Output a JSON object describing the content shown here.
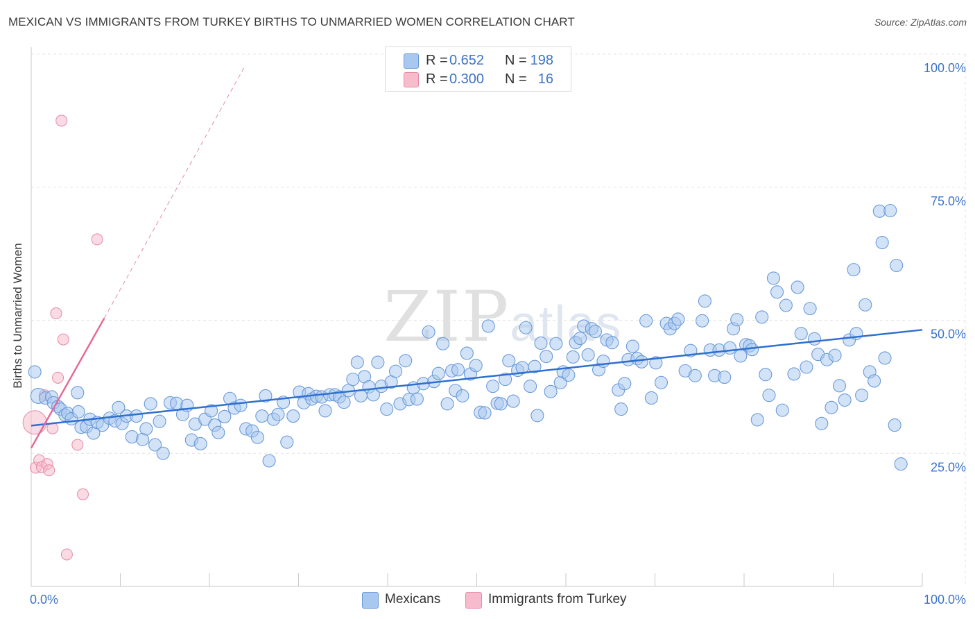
{
  "title": "MEXICAN VS IMMIGRANTS FROM TURKEY BIRTHS TO UNMARRIED WOMEN CORRELATION CHART",
  "source": "Source: ZipAtlas.com",
  "watermark": {
    "big": "ZIP",
    "small": "atlas"
  },
  "colors": {
    "blue_fill": "#a8c8f0",
    "blue_stroke": "#6a9ad8",
    "blue_line": "#2f6fcf",
    "pink_fill": "#f6bccc",
    "pink_stroke": "#e58aa6",
    "pink_line": "#e46a97",
    "tick_text": "#3d74c9",
    "grid": "#e3e3e3"
  },
  "stats": [
    {
      "r_label": "R =",
      "r_value": "0.652",
      "n_label": "N =",
      "n_value": "198",
      "color": "#a8c8f0",
      "border": "#6a9ad8"
    },
    {
      "r_label": "R =",
      "r_value": "0.300",
      "n_label": "N =",
      "n_value": "16",
      "color": "#f6bccc",
      "border": "#e58aa6"
    }
  ],
  "legend": [
    {
      "label": "Mexicans",
      "color": "#a8c8f0",
      "border": "#6a9ad8"
    },
    {
      "label": "Immigrants from Turkey",
      "color": "#f6bccc",
      "border": "#e58aa6"
    }
  ],
  "chart_data": {
    "type": "scatter",
    "title": "MEXICAN VS IMMIGRANTS FROM TURKEY BIRTHS TO UNMARRIED WOMEN CORRELATION CHART",
    "xlabel": "",
    "ylabel": "Births to Unmarried Women",
    "xlim": [
      0,
      100
    ],
    "ylim": [
      0,
      100
    ],
    "x_tick_labels": [
      {
        "value": 0,
        "label": "0.0%"
      },
      {
        "value": 100,
        "label": "100.0%"
      }
    ],
    "y_tick_labels": [
      {
        "value": 25,
        "label": "25.0%"
      },
      {
        "value": 50,
        "label": "50.0%"
      },
      {
        "value": 75,
        "label": "75.0%"
      },
      {
        "value": 100,
        "label": "100.0%"
      }
    ],
    "grid": true,
    "series": [
      {
        "name": "Mexicans",
        "r": 0.652,
        "n": 198,
        "trend": {
          "x0": 0,
          "y0": 30.2,
          "x1": 100,
          "y1": 48.2
        },
        "points": [
          [
            0.4,
            40.3
          ],
          [
            0.8,
            35.8
          ],
          [
            1.6,
            35.4
          ],
          [
            2.3,
            35.6
          ],
          [
            2.5,
            34.5
          ],
          [
            3.0,
            33.8
          ],
          [
            3.3,
            33.3
          ],
          [
            3.8,
            32.2
          ],
          [
            4.1,
            32.5
          ],
          [
            4.5,
            31.5
          ],
          [
            5.3,
            32.8
          ],
          [
            5.6,
            29.9
          ],
          [
            5.2,
            36.4
          ],
          [
            6.2,
            30.0
          ],
          [
            6.6,
            31.4
          ],
          [
            7.0,
            28.8
          ],
          [
            7.4,
            30.8
          ],
          [
            8.0,
            30.3
          ],
          [
            8.8,
            31.6
          ],
          [
            9.4,
            31.1
          ],
          [
            9.8,
            33.6
          ],
          [
            10.2,
            30.6
          ],
          [
            10.7,
            32.0
          ],
          [
            11.3,
            28.1
          ],
          [
            11.8,
            32.0
          ],
          [
            12.5,
            27.6
          ],
          [
            12.9,
            29.6
          ],
          [
            13.4,
            34.3
          ],
          [
            13.9,
            26.6
          ],
          [
            14.4,
            31.0
          ],
          [
            14.8,
            25.0
          ],
          [
            15.6,
            34.5
          ],
          [
            16.3,
            34.4
          ],
          [
            17.0,
            32.3
          ],
          [
            17.5,
            34.0
          ],
          [
            18.0,
            27.5
          ],
          [
            18.4,
            30.5
          ],
          [
            19.0,
            26.8
          ],
          [
            19.5,
            31.4
          ],
          [
            20.2,
            33.0
          ],
          [
            20.6,
            30.3
          ],
          [
            21.0,
            28.9
          ],
          [
            21.7,
            31.9
          ],
          [
            22.3,
            35.3
          ],
          [
            22.8,
            33.5
          ],
          [
            23.5,
            34.0
          ],
          [
            24.1,
            29.6
          ],
          [
            24.8,
            29.2
          ],
          [
            25.4,
            28.0
          ],
          [
            25.9,
            32.0
          ],
          [
            26.3,
            35.8
          ],
          [
            26.7,
            23.6
          ],
          [
            27.2,
            31.4
          ],
          [
            27.7,
            32.3
          ],
          [
            28.3,
            34.6
          ],
          [
            28.7,
            27.1
          ],
          [
            29.4,
            32.0
          ],
          [
            30.1,
            36.5
          ],
          [
            30.6,
            34.5
          ],
          [
            31.1,
            36.2
          ],
          [
            31.5,
            35.2
          ],
          [
            32.0,
            35.7
          ],
          [
            32.6,
            35.6
          ],
          [
            33.0,
            33.0
          ],
          [
            33.5,
            36.0
          ],
          [
            34.1,
            36.0
          ],
          [
            34.6,
            35.6
          ],
          [
            35.1,
            34.6
          ],
          [
            35.6,
            36.8
          ],
          [
            36.1,
            38.9
          ],
          [
            36.6,
            42.1
          ],
          [
            37.0,
            35.8
          ],
          [
            37.4,
            39.4
          ],
          [
            37.9,
            37.5
          ],
          [
            38.4,
            36.0
          ],
          [
            38.9,
            42.1
          ],
          [
            39.3,
            37.6
          ],
          [
            39.9,
            33.3
          ],
          [
            40.4,
            38.4
          ],
          [
            40.9,
            40.4
          ],
          [
            41.4,
            34.3
          ],
          [
            42.0,
            42.4
          ],
          [
            42.4,
            35.1
          ],
          [
            42.9,
            37.3
          ],
          [
            43.3,
            35.2
          ],
          [
            44.0,
            38.1
          ],
          [
            44.6,
            47.8
          ],
          [
            45.2,
            38.5
          ],
          [
            45.7,
            40.0
          ],
          [
            46.2,
            45.6
          ],
          [
            46.7,
            34.3
          ],
          [
            47.2,
            40.5
          ],
          [
            47.6,
            36.8
          ],
          [
            47.9,
            40.7
          ],
          [
            48.4,
            35.8
          ],
          [
            48.9,
            43.8
          ],
          [
            49.3,
            39.9
          ],
          [
            49.9,
            41.5
          ],
          [
            50.4,
            32.7
          ],
          [
            50.9,
            32.6
          ],
          [
            51.3,
            48.9
          ],
          [
            51.8,
            37.6
          ],
          [
            52.3,
            34.4
          ],
          [
            52.7,
            34.3
          ],
          [
            53.2,
            38.9
          ],
          [
            53.6,
            42.4
          ],
          [
            54.1,
            34.8
          ],
          [
            54.6,
            40.6
          ],
          [
            55.1,
            41.1
          ],
          [
            55.5,
            48.6
          ],
          [
            56.0,
            37.6
          ],
          [
            56.5,
            41.3
          ],
          [
            56.8,
            32.1
          ],
          [
            57.2,
            45.7
          ],
          [
            57.8,
            43.2
          ],
          [
            58.3,
            36.6
          ],
          [
            58.9,
            45.6
          ],
          [
            59.4,
            38.3
          ],
          [
            59.7,
            40.3
          ],
          [
            60.3,
            39.7
          ],
          [
            60.8,
            43.1
          ],
          [
            61.1,
            45.8
          ],
          [
            61.6,
            46.6
          ],
          [
            62.0,
            48.9
          ],
          [
            62.5,
            43.5
          ],
          [
            62.9,
            48.4
          ],
          [
            63.3,
            47.9
          ],
          [
            63.7,
            40.7
          ],
          [
            64.2,
            42.3
          ],
          [
            64.6,
            46.3
          ],
          [
            65.2,
            45.8
          ],
          [
            65.9,
            36.9
          ],
          [
            66.2,
            33.3
          ],
          [
            66.6,
            38.1
          ],
          [
            67.0,
            42.6
          ],
          [
            67.5,
            45.1
          ],
          [
            68.0,
            42.8
          ],
          [
            68.5,
            42.2
          ],
          [
            69.0,
            49.9
          ],
          [
            69.6,
            35.4
          ],
          [
            70.1,
            42.0
          ],
          [
            70.7,
            38.3
          ],
          [
            71.3,
            49.4
          ],
          [
            71.7,
            48.4
          ],
          [
            72.2,
            49.4
          ],
          [
            72.6,
            50.2
          ],
          [
            73.4,
            40.5
          ],
          [
            74.0,
            44.3
          ],
          [
            74.5,
            39.6
          ],
          [
            75.3,
            49.9
          ],
          [
            75.6,
            53.6
          ],
          [
            76.2,
            44.4
          ],
          [
            76.7,
            39.6
          ],
          [
            77.2,
            44.4
          ],
          [
            77.8,
            39.3
          ],
          [
            78.4,
            44.8
          ],
          [
            78.8,
            48.4
          ],
          [
            79.2,
            50.1
          ],
          [
            79.6,
            43.3
          ],
          [
            80.2,
            45.4
          ],
          [
            80.6,
            45.2
          ],
          [
            80.9,
            44.5
          ],
          [
            81.5,
            31.3
          ],
          [
            82.0,
            50.6
          ],
          [
            82.4,
            39.8
          ],
          [
            82.8,
            35.9
          ],
          [
            83.3,
            57.9
          ],
          [
            83.7,
            55.3
          ],
          [
            84.3,
            33.1
          ],
          [
            84.7,
            52.8
          ],
          [
            85.6,
            39.9
          ],
          [
            86.0,
            56.2
          ],
          [
            86.4,
            47.5
          ],
          [
            87.0,
            41.2
          ],
          [
            87.4,
            52.2
          ],
          [
            87.9,
            46.5
          ],
          [
            88.3,
            43.6
          ],
          [
            88.7,
            30.6
          ],
          [
            89.3,
            42.6
          ],
          [
            89.8,
            33.6
          ],
          [
            90.2,
            43.4
          ],
          [
            90.7,
            37.7
          ],
          [
            91.3,
            35.0
          ],
          [
            91.8,
            46.3
          ],
          [
            92.3,
            59.5
          ],
          [
            92.6,
            47.5
          ],
          [
            93.2,
            35.9
          ],
          [
            93.6,
            52.9
          ],
          [
            94.1,
            40.3
          ],
          [
            94.6,
            38.6
          ],
          [
            95.2,
            70.5
          ],
          [
            95.5,
            64.6
          ],
          [
            95.8,
            42.9
          ],
          [
            96.4,
            70.6
          ],
          [
            96.9,
            30.3
          ],
          [
            97.1,
            60.3
          ],
          [
            97.6,
            23.0
          ]
        ]
      },
      {
        "name": "Immigrants from Turkey",
        "r": 0.3,
        "n": 16,
        "trend": {
          "x0": 0,
          "y0": 26.0,
          "x1": 8.2,
          "y1": 50.4,
          "x1_dashed": 24.0,
          "y1_dashed": 97.8
        },
        "points": [
          [
            0.4,
            30.8
          ],
          [
            0.5,
            22.3
          ],
          [
            0.9,
            23.7
          ],
          [
            1.2,
            22.4
          ],
          [
            1.5,
            35.9
          ],
          [
            1.8,
            23.0
          ],
          [
            2.0,
            21.8
          ],
          [
            2.4,
            29.7
          ],
          [
            2.8,
            51.3
          ],
          [
            3.0,
            39.2
          ],
          [
            3.4,
            87.5
          ],
          [
            3.6,
            46.4
          ],
          [
            4.0,
            6.0
          ],
          [
            5.2,
            26.6
          ],
          [
            5.8,
            17.3
          ],
          [
            7.4,
            65.2
          ]
        ]
      }
    ]
  }
}
